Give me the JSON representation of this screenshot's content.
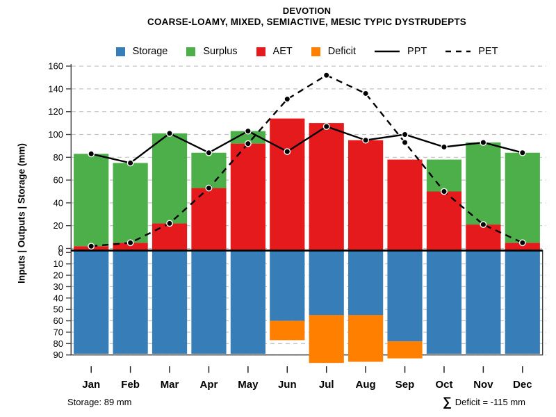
{
  "title": "DEVOTION",
  "subtitle": "COARSE-LOAMY, MIXED, SEMIACTIVE, MESIC TYPIC DYSTRUDEPTS",
  "y_axis": {
    "label": "Inputs | Outputs | Storage  (mm)",
    "upper_ticks": [
      0,
      20,
      40,
      60,
      80,
      100,
      120,
      140,
      160
    ],
    "lower_ticks": [
      0,
      10,
      20,
      30,
      40,
      50,
      60,
      70,
      80,
      90
    ]
  },
  "legend": {
    "items": [
      {
        "label": "Storage",
        "type": "swatch",
        "color": "#377EB8"
      },
      {
        "label": "Surplus",
        "type": "swatch",
        "color": "#4DAF4A"
      },
      {
        "label": "AET",
        "type": "swatch",
        "color": "#E41A1C"
      },
      {
        "label": "Deficit",
        "type": "swatch",
        "color": "#FF7F00"
      },
      {
        "label": "PPT",
        "type": "line-solid",
        "color": "#000000"
      },
      {
        "label": "PET",
        "type": "line-dashed",
        "color": "#000000"
      }
    ]
  },
  "footer": {
    "storage_note": "Storage: 89 mm",
    "sigma": "∑",
    "deficit_note": "Deficit = -115 mm"
  },
  "colors": {
    "storage": "#377EB8",
    "surplus": "#4DAF4A",
    "aet": "#E41A1C",
    "deficit": "#FF7F00",
    "line": "#000000",
    "grid": "#c3c3c3",
    "frame": "#404040"
  },
  "chart_data": {
    "type": "bar",
    "subtype": "stacked-bars-with-lines, two vertical panels (upper: inputs/outputs 0-160 mm; lower: storage 0-90 mm inverted)",
    "title": "DEVOTION",
    "subtitle": "COARSE-LOAMY, MIXED, SEMIACTIVE, MESIC TYPIC DYSTRUDEPTS",
    "xlabel": "",
    "ylabel": "Inputs | Outputs | Storage  (mm)",
    "categories": [
      "Jan",
      "Feb",
      "Mar",
      "Apr",
      "May",
      "Jun",
      "Jul",
      "Aug",
      "Sep",
      "Oct",
      "Nov",
      "Dec"
    ],
    "upper_axis": {
      "range": [
        0,
        160
      ],
      "ticks": [
        0,
        20,
        40,
        60,
        80,
        100,
        120,
        140,
        160
      ],
      "grid": true
    },
    "lower_axis": {
      "range": [
        0,
        90
      ],
      "ticks": [
        0,
        10,
        20,
        30,
        40,
        50,
        60,
        70,
        80,
        90
      ],
      "inverted": true,
      "grid": true
    },
    "series": [
      {
        "name": "AET",
        "type": "bar",
        "panel": "upper",
        "color": "#E41A1C",
        "values": [
          2,
          5,
          22,
          53,
          92,
          114,
          110,
          95,
          78,
          50,
          21,
          5
        ]
      },
      {
        "name": "Surplus",
        "type": "bar",
        "panel": "upper",
        "stacked_on": "AET",
        "color": "#4DAF4A",
        "values": [
          81,
          70,
          79,
          31,
          11,
          0,
          0,
          0,
          0,
          28,
          72,
          79
        ]
      },
      {
        "name": "Storage",
        "type": "bar",
        "panel": "lower",
        "color": "#377EB8",
        "values": [
          89,
          89,
          89,
          89,
          89,
          60,
          55,
          55,
          78,
          89,
          89,
          89
        ]
      },
      {
        "name": "Deficit",
        "type": "bar",
        "panel": "lower",
        "stacked_on": "Storage",
        "color": "#FF7F00",
        "values": [
          0,
          0,
          0,
          0,
          0,
          17,
          42,
          41,
          15,
          0,
          0,
          0
        ]
      },
      {
        "name": "PPT",
        "type": "line",
        "style": "solid",
        "panel": "upper",
        "color": "#000000",
        "values": [
          83,
          75,
          101,
          84,
          103,
          85,
          107,
          95,
          100,
          89,
          93,
          84
        ]
      },
      {
        "name": "PET",
        "type": "line",
        "style": "dashed",
        "panel": "upper",
        "color": "#000000",
        "values": [
          2,
          5,
          22,
          53,
          92,
          131,
          152,
          136,
          93,
          50,
          21,
          5
        ]
      }
    ],
    "annotations": {
      "storage_capacity_mm": "89",
      "deficit_sum_mm": "-115"
    },
    "legend_position": "top-center"
  }
}
